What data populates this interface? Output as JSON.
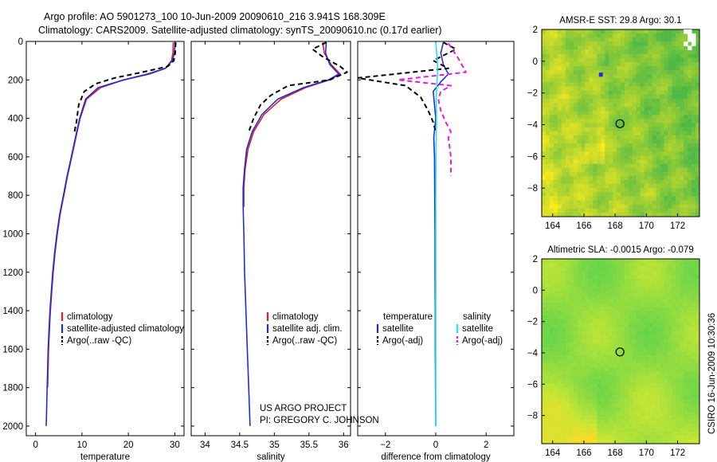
{
  "header": {
    "line1": "Argo profile: AO 5901273_100 10-Jun-2009 20090610_216 3.941S 168.309E",
    "line2": "Climatology: CARS2009. Satellite-adjusted climatology: synTS_20090610.nc (0.17d earlier)"
  },
  "credits": {
    "project": "US ARGO PROJECT",
    "pi": "PI: GREGORY C. JOHNSON",
    "stamp": "CSIRO 16-Jun-2009 10:30:36"
  },
  "colors": {
    "red": "#e0201e",
    "blue": "#1c2ee0",
    "black": "#000000",
    "cyan": "#22e8e8",
    "magenta": "#e020d8"
  },
  "chart_data": [
    {
      "type": "line",
      "id": "temperature",
      "xlabel": "temperature",
      "ylabel": "",
      "xlim": [
        -2,
        32
      ],
      "ylim": [
        2050,
        0
      ],
      "xticks": [
        0,
        10,
        20,
        30
      ],
      "yticks": [
        0,
        200,
        400,
        600,
        800,
        1000,
        1200,
        1400,
        1600,
        1800,
        2000
      ],
      "legend": [
        "climatology",
        "satellite-adjusted climatology",
        "Argo(..raw -QC)"
      ],
      "series": [
        {
          "name": "climatology",
          "color": "red",
          "dash": "none",
          "points": [
            [
              29.7,
              5
            ],
            [
              29.6,
              60
            ],
            [
              29.3,
              100
            ],
            [
              28,
              140
            ],
            [
              24,
              170
            ],
            [
              19,
              200
            ],
            [
              14,
              240
            ],
            [
              11,
              300
            ],
            [
              9.6,
              400
            ],
            [
              8.7,
              500
            ],
            [
              7.8,
              600
            ],
            [
              6.9,
              700
            ],
            [
              6.1,
              800
            ],
            [
              5.3,
              900
            ],
            [
              4.7,
              1000
            ],
            [
              4.2,
              1100
            ],
            [
              3.8,
              1200
            ],
            [
              3.5,
              1300
            ],
            [
              3.2,
              1400
            ],
            [
              3.0,
              1500
            ],
            [
              2.8,
              1600
            ],
            [
              2.7,
              1700
            ],
            [
              2.6,
              1800
            ]
          ]
        },
        {
          "name": "satellite-adjusted climatology",
          "color": "blue",
          "dash": "none",
          "points": [
            [
              30.1,
              5
            ],
            [
              29.9,
              60
            ],
            [
              29.5,
              100
            ],
            [
              28,
              140
            ],
            [
              24.5,
              170
            ],
            [
              19,
              200
            ],
            [
              13.5,
              240
            ],
            [
              10.8,
              300
            ],
            [
              9.5,
              400
            ],
            [
              8.6,
              500
            ],
            [
              7.7,
              600
            ],
            [
              6.8,
              700
            ],
            [
              6.0,
              800
            ],
            [
              5.2,
              900
            ],
            [
              4.6,
              1000
            ],
            [
              4.1,
              1100
            ],
            [
              3.7,
              1200
            ],
            [
              3.4,
              1300
            ],
            [
              3.1,
              1400
            ],
            [
              2.9,
              1500
            ],
            [
              2.7,
              1600
            ],
            [
              2.6,
              1700
            ],
            [
              2.5,
              1800
            ],
            [
              2.4,
              1900
            ],
            [
              2.3,
              2000
            ]
          ]
        },
        {
          "name": "Argo(..raw -QC)",
          "color": "black",
          "dash": "6,4",
          "points": [
            [
              30.2,
              5
            ],
            [
              30.1,
              60
            ],
            [
              29.8,
              100
            ],
            [
              28.5,
              130
            ],
            [
              23,
              160
            ],
            [
              17,
              190
            ],
            [
              13,
              220
            ],
            [
              10.5,
              260
            ],
            [
              9.3,
              330
            ],
            [
              8.8,
              420
            ],
            [
              8.3,
              480
            ]
          ]
        }
      ]
    },
    {
      "type": "line",
      "id": "salinity",
      "xlabel": "salinity",
      "ylabel": "",
      "xlim": [
        33.8,
        36.1
      ],
      "ylim": [
        2050,
        0
      ],
      "xticks": [
        34,
        34.5,
        35,
        35.5,
        36
      ],
      "legend": [
        "climatology",
        "satellite adj. clim.",
        "Argo(..raw -QC)"
      ],
      "series": [
        {
          "name": "climatology",
          "color": "red",
          "dash": "none",
          "points": [
            [
              35.7,
              5
            ],
            [
              35.72,
              60
            ],
            [
              35.82,
              120
            ],
            [
              35.95,
              170
            ],
            [
              35.8,
              200
            ],
            [
              35.45,
              240
            ],
            [
              35.1,
              300
            ],
            [
              34.85,
              380
            ],
            [
              34.7,
              470
            ],
            [
              34.62,
              560
            ],
            [
              34.58,
              660
            ],
            [
              34.56,
              760
            ],
            [
              34.56,
              860
            ]
          ]
        },
        {
          "name": "satellite adj. clim.",
          "color": "blue",
          "dash": "none",
          "points": [
            [
              35.75,
              5
            ],
            [
              35.74,
              60
            ],
            [
              35.8,
              120
            ],
            [
              35.93,
              170
            ],
            [
              35.78,
              200
            ],
            [
              35.42,
              240
            ],
            [
              35.05,
              300
            ],
            [
              34.82,
              380
            ],
            [
              34.68,
              470
            ],
            [
              34.6,
              560
            ],
            [
              34.57,
              660
            ],
            [
              34.55,
              760
            ],
            [
              34.55,
              860
            ],
            [
              34.56,
              1000
            ],
            [
              34.57,
              1200
            ],
            [
              34.59,
              1400
            ],
            [
              34.61,
              1600
            ],
            [
              34.63,
              1800
            ],
            [
              34.65,
              2000
            ]
          ]
        },
        {
          "name": "Argo(..raw -QC)",
          "color": "black",
          "dash": "6,4",
          "points": [
            [
              35.75,
              5
            ],
            [
              35.55,
              40
            ],
            [
              35.7,
              80
            ],
            [
              35.95,
              130
            ],
            [
              36.05,
              160
            ],
            [
              35.8,
              200
            ],
            [
              35.2,
              230
            ],
            [
              34.95,
              280
            ],
            [
              34.8,
              330
            ],
            [
              34.7,
              400
            ],
            [
              34.63,
              470
            ]
          ]
        }
      ]
    },
    {
      "type": "line",
      "id": "difference",
      "xlabel": "difference from climatology",
      "ylabel": "",
      "xlim": [
        -3.1,
        3.1
      ],
      "ylim": [
        2050,
        0
      ],
      "xticks": [
        -2,
        0,
        2
      ],
      "legend_temperature": {
        "title": "temperature",
        "items": [
          "satellite",
          "Argo(-adj)"
        ]
      },
      "legend_salinity": {
        "title": "salinity",
        "items": [
          "satellite",
          "Argo(-adj)"
        ]
      },
      "series": [
        {
          "name": "temperature satellite",
          "color": "blue",
          "dash": "none",
          "points": [
            [
              0.3,
              5
            ],
            [
              0.2,
              60
            ],
            [
              0.3,
              120
            ],
            [
              0.5,
              170
            ],
            [
              0.2,
              210
            ],
            [
              -0.1,
              260
            ],
            [
              -0.05,
              330
            ],
            [
              0,
              400
            ],
            [
              -0.08,
              500
            ],
            [
              -0.05,
              600
            ],
            [
              -0.04,
              800
            ],
            [
              -0.03,
              1000
            ],
            [
              -0.03,
              1200
            ],
            [
              -0.02,
              1400
            ],
            [
              -0.02,
              1600
            ],
            [
              -0.01,
              1800
            ],
            [
              0,
              2000
            ]
          ]
        },
        {
          "name": "temperature Argo(-adj)",
          "color": "black",
          "dash": "6,4",
          "points": [
            [
              0.3,
              5
            ],
            [
              0.8,
              40
            ],
            [
              -0.1,
              100
            ],
            [
              0.5,
              140
            ],
            [
              -3.1,
              190
            ],
            [
              -1.2,
              230
            ],
            [
              -0.6,
              290
            ],
            [
              -0.3,
              360
            ],
            [
              -0.1,
              420
            ],
            [
              0,
              470
            ]
          ]
        },
        {
          "name": "salinity satellite",
          "color": "cyan",
          "dash": "none",
          "points": [
            [
              0,
              5
            ],
            [
              0.05,
              80
            ],
            [
              0.08,
              150
            ],
            [
              0.04,
              220
            ],
            [
              0.02,
              300
            ],
            [
              0.03,
              400
            ],
            [
              0.01,
              600
            ],
            [
              0,
              800
            ],
            [
              0,
              1000
            ],
            [
              0,
              1200
            ],
            [
              0,
              1400
            ],
            [
              0,
              1600
            ],
            [
              0,
              1800
            ],
            [
              0,
              2000
            ]
          ]
        },
        {
          "name": "salinity Argo(-adj)",
          "color": "magenta",
          "dash": "6,4",
          "points": [
            [
              0.5,
              10
            ],
            [
              0.9,
              90
            ],
            [
              1.2,
              160
            ],
            [
              -1.5,
              200
            ],
            [
              0.6,
              230
            ],
            [
              0.2,
              260
            ],
            [
              0.1,
              300
            ],
            [
              0.2,
              360
            ],
            [
              0.4,
              420
            ],
            [
              0.6,
              470
            ],
            [
              0.5,
              500
            ],
            [
              0.6,
              600
            ],
            [
              0.6,
              700
            ]
          ]
        }
      ]
    },
    {
      "type": "heatmap",
      "id": "sst",
      "title": "AMSR-E SST: 29.8 Argo: 30.1",
      "xlim": [
        163.3,
        173.4
      ],
      "ylim": [
        -9.8,
        2.0
      ],
      "xticks": [
        164,
        166,
        168,
        170,
        172
      ],
      "yticks": [
        2,
        0,
        -2,
        -4,
        -6,
        -8
      ],
      "marker": {
        "lon": 168.309,
        "lat": -3.941
      }
    },
    {
      "type": "heatmap",
      "id": "sla",
      "title": "Altimetric SLA: -0.0015 Argo: -0.079",
      "xlim": [
        163.3,
        173.4
      ],
      "ylim": [
        -9.8,
        2.0
      ],
      "xticks": [
        164,
        166,
        168,
        170,
        172
      ],
      "yticks": [
        2,
        0,
        -2,
        -4,
        -6,
        -8
      ],
      "marker": {
        "lon": 168.309,
        "lat": -3.941
      }
    }
  ]
}
